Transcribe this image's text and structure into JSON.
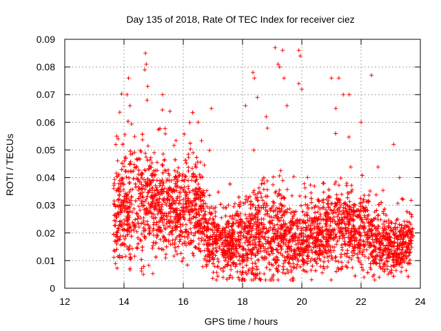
{
  "chart_data": {
    "type": "scatter",
    "title": "Day 135 of 2018, Rate Of TEC Index for receiver ciez",
    "xlabel": "GPS time / hours",
    "ylabel": "ROTI / TECUs",
    "xlim": [
      12,
      24
    ],
    "ylim": [
      0,
      0.09
    ],
    "xticks": [
      "12",
      "14",
      "16",
      "18",
      "20",
      "22",
      "24"
    ],
    "xtick_values": [
      12,
      14,
      16,
      18,
      20,
      22,
      24
    ],
    "yticks": [
      "0",
      "0.01",
      "0.02",
      "0.03",
      "0.04",
      "0.05",
      "0.06",
      "0.07",
      "0.08",
      "0.09"
    ],
    "ytick_values": [
      0,
      0.01,
      0.02,
      0.03,
      0.04,
      0.05,
      0.06,
      0.07,
      0.08,
      0.09
    ],
    "grid": true,
    "marker": "+",
    "color": "#ff0000",
    "series": [
      {
        "name": "ROTI",
        "x_range": [
          13.65,
          23.75
        ],
        "profile": [
          {
            "x": 13.7,
            "median": 0.025,
            "spread": 0.012
          },
          {
            "x": 14.0,
            "median": 0.028,
            "spread": 0.014
          },
          {
            "x": 14.5,
            "median": 0.03,
            "spread": 0.015
          },
          {
            "x": 15.0,
            "median": 0.03,
            "spread": 0.014
          },
          {
            "x": 15.5,
            "median": 0.029,
            "spread": 0.013
          },
          {
            "x": 16.0,
            "median": 0.027,
            "spread": 0.012
          },
          {
            "x": 16.5,
            "median": 0.028,
            "spread": 0.013
          },
          {
            "x": 17.0,
            "median": 0.017,
            "spread": 0.008
          },
          {
            "x": 17.5,
            "median": 0.016,
            "spread": 0.008
          },
          {
            "x": 18.0,
            "median": 0.018,
            "spread": 0.01
          },
          {
            "x": 18.5,
            "median": 0.02,
            "spread": 0.012
          },
          {
            "x": 19.0,
            "median": 0.02,
            "spread": 0.012
          },
          {
            "x": 19.5,
            "median": 0.018,
            "spread": 0.01
          },
          {
            "x": 20.0,
            "median": 0.016,
            "spread": 0.008
          },
          {
            "x": 20.5,
            "median": 0.02,
            "spread": 0.009
          },
          {
            "x": 21.0,
            "median": 0.022,
            "spread": 0.011
          },
          {
            "x": 21.5,
            "median": 0.022,
            "spread": 0.011
          },
          {
            "x": 22.0,
            "median": 0.02,
            "spread": 0.01
          },
          {
            "x": 22.5,
            "median": 0.018,
            "spread": 0.009
          },
          {
            "x": 23.0,
            "median": 0.015,
            "spread": 0.007
          },
          {
            "x": 23.5,
            "median": 0.015,
            "spread": 0.007
          },
          {
            "x": 23.75,
            "median": 0.016,
            "spread": 0.007
          }
        ],
        "notable_points": [
          {
            "x": 13.75,
            "y": 0.055
          },
          {
            "x": 13.8,
            "y": 0.054
          },
          {
            "x": 14.1,
            "y": 0.07
          },
          {
            "x": 14.15,
            "y": 0.076
          },
          {
            "x": 14.2,
            "y": 0.066
          },
          {
            "x": 14.7,
            "y": 0.079
          },
          {
            "x": 14.72,
            "y": 0.085
          },
          {
            "x": 14.75,
            "y": 0.081
          },
          {
            "x": 14.78,
            "y": 0.068
          },
          {
            "x": 14.8,
            "y": 0.073
          },
          {
            "x": 15.3,
            "y": 0.07
          },
          {
            "x": 15.55,
            "y": 0.064
          },
          {
            "x": 16.5,
            "y": 0.06
          },
          {
            "x": 16.95,
            "y": 0.065
          },
          {
            "x": 18.1,
            "y": 0.066
          },
          {
            "x": 18.35,
            "y": 0.078
          },
          {
            "x": 18.4,
            "y": 0.076
          },
          {
            "x": 18.5,
            "y": 0.069
          },
          {
            "x": 18.8,
            "y": 0.062
          },
          {
            "x": 19.1,
            "y": 0.087
          },
          {
            "x": 19.2,
            "y": 0.081
          },
          {
            "x": 19.25,
            "y": 0.08
          },
          {
            "x": 19.35,
            "y": 0.086
          },
          {
            "x": 19.4,
            "y": 0.076
          },
          {
            "x": 19.5,
            "y": 0.066
          },
          {
            "x": 19.9,
            "y": 0.086
          },
          {
            "x": 19.95,
            "y": 0.084
          },
          {
            "x": 19.9,
            "y": 0.074
          },
          {
            "x": 20.0,
            "y": 0.072
          },
          {
            "x": 21.0,
            "y": 0.076
          },
          {
            "x": 21.15,
            "y": 0.065
          },
          {
            "x": 21.25,
            "y": 0.076
          },
          {
            "x": 21.4,
            "y": 0.07
          },
          {
            "x": 21.6,
            "y": 0.07
          },
          {
            "x": 22.35,
            "y": 0.077
          },
          {
            "x": 22.0,
            "y": 0.06
          },
          {
            "x": 23.1,
            "y": 0.052
          },
          {
            "x": 23.3,
            "y": 0.04
          },
          {
            "x": 18.05,
            "y": 0.003
          },
          {
            "x": 18.5,
            "y": 0.005
          },
          {
            "x": 19.0,
            "y": 0.004
          },
          {
            "x": 14.65,
            "y": 0.005
          },
          {
            "x": 22.1,
            "y": 0.004
          }
        ]
      }
    ]
  }
}
